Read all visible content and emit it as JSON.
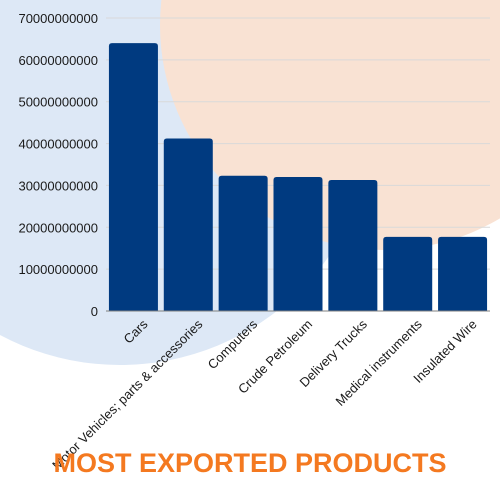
{
  "chart_data": {
    "type": "bar",
    "title": "MOST EXPORTED PRODUCTS",
    "xlabel": "",
    "ylabel": "",
    "categories": [
      "Cars",
      "Motor Vehicles; parts & accessories",
      "Computers",
      "Crude Petroleum",
      "Delivery Trucks",
      "Medical instruments",
      "Insulated Wire"
    ],
    "values": [
      64000000000,
      41200000000,
      32300000000,
      32000000000,
      31300000000,
      17700000000,
      17700000000
    ],
    "ylim": [
      0,
      70000000000
    ],
    "yticks": [
      "0",
      "10000000000",
      "20000000000",
      "30000000000",
      "40000000000",
      "50000000000",
      "60000000000",
      "70000000000"
    ],
    "grid": true,
    "legend": "none"
  },
  "colors": {
    "bar": "#003a80",
    "title": "#f47920",
    "background_circle_left": "#dde8f6",
    "background_circle_right": "#f9e2d3",
    "grid": "#d9d9d9",
    "axis": "#7f7f7f"
  }
}
